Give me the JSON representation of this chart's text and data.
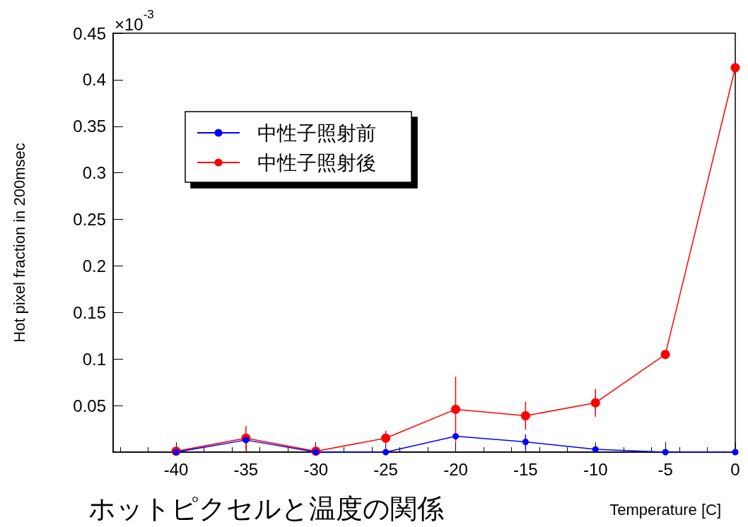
{
  "chart_data": {
    "type": "line",
    "title": "ホットピクセルと温度の関係",
    "xlabel": "Temperature [C]",
    "ylabel": "Hot pixel fraction in 200msec",
    "annotations": [
      "×10$^{-3}$"
    ],
    "x": [
      -40,
      -35,
      -30,
      -25,
      -20,
      -15,
      -10,
      -5,
      0
    ],
    "series": [
      {
        "name": "中性子照射前",
        "color": "#0000ff",
        "values": [
          0,
          0.013,
          0,
          0,
          0.017,
          0.011,
          0.003,
          0,
          0
        ],
        "errors": [
          null,
          null,
          null,
          null,
          null,
          0.008,
          null,
          null,
          null
        ]
      },
      {
        "name": "中性子照射後",
        "color": "#ff0000",
        "values": [
          0.001,
          0.015,
          0.001,
          0.015,
          0.046,
          0.039,
          0.053,
          0.105,
          0.413
        ],
        "errors": [
          null,
          0.013,
          null,
          0.008,
          0.035,
          0.015,
          0.015,
          null,
          null
        ]
      }
    ],
    "xlim": [
      -44.5,
      0
    ],
    "xticks": [
      -40,
      -35,
      -30,
      -25,
      -20,
      -15,
      -10,
      -5,
      0
    ],
    "ylim": [
      0,
      0.45
    ],
    "yticks": [
      0.05,
      0.1,
      0.15,
      0.2,
      0.25,
      0.3,
      0.35,
      0.4,
      0.45
    ],
    "grid": false,
    "legend": "top left",
    "marker": "circle",
    "line_style": "solid"
  }
}
